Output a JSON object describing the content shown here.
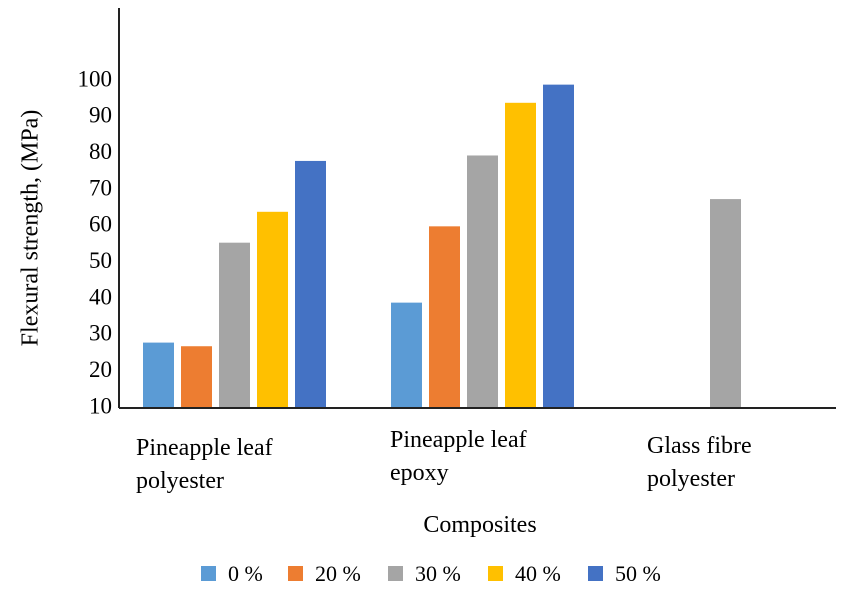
{
  "chart_data": {
    "type": "bar",
    "categories": [
      [
        "Pineapple leaf",
        "polyester"
      ],
      [
        "Pineapple leaf",
        "epoxy"
      ],
      [
        "Glass fibre",
        "polyester"
      ]
    ],
    "series": [
      {
        "name": "0 %",
        "color": "#5b9bd5",
        "values": [
          28,
          39,
          null
        ]
      },
      {
        "name": "20 %",
        "color": "#ed7d31",
        "values": [
          27,
          60,
          null
        ]
      },
      {
        "name": "30 %",
        "color": "#a5a5a5",
        "values": [
          55.5,
          79.5,
          67.5
        ]
      },
      {
        "name": "40 %",
        "color": "#ffc000",
        "values": [
          64,
          94,
          null
        ]
      },
      {
        "name": "50 %",
        "color": "#4472c4",
        "values": [
          78,
          99,
          null
        ]
      }
    ],
    "xlabel": "Composites",
    "ylabel": "Flexural strength, (MPa)",
    "yticks": [
      "10",
      "20",
      "30",
      "40",
      "50",
      "60",
      "70",
      "80",
      "90",
      "100"
    ],
    "ylim": [
      10,
      100
    ],
    "grid": false,
    "legend_position": "bottom"
  }
}
